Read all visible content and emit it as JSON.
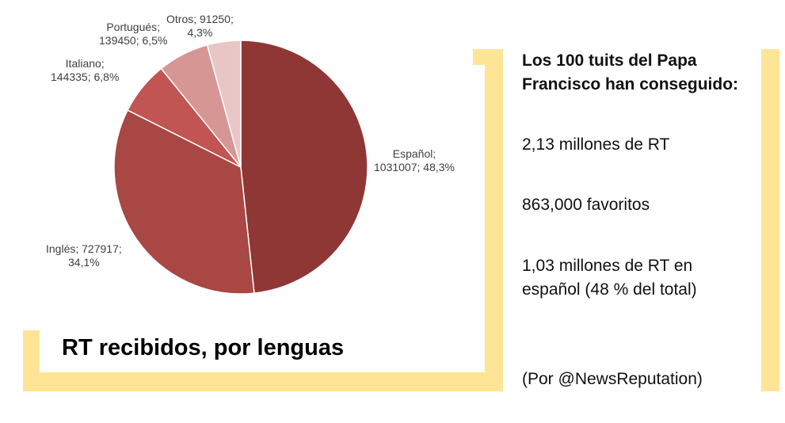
{
  "chart_data": {
    "type": "pie",
    "title": "RT recibidos, por lenguas",
    "slices": [
      {
        "label": "Español",
        "value": 1031007,
        "percent_label": "48,3%",
        "color": "#8e3735"
      },
      {
        "label": "Inglés",
        "value": 727917,
        "percent_label": "34,1%",
        "color": "#a84744"
      },
      {
        "label": "Italiano",
        "value": 144335,
        "percent_label": "6,8%",
        "color": "#c05552"
      },
      {
        "label": "Portugués",
        "value": 139450,
        "percent_label": "6,5%",
        "color": "#d69694"
      },
      {
        "label": "Otros",
        "value": 91250,
        "percent_label": "4,3%",
        "color": "#e7c6c5"
      }
    ],
    "data_labels": [
      "Español;\n1031007; 48,3%",
      "Inglés; 727917;\n34,1%",
      "Italiano;\n144335; 6,8%",
      "Portugués;\n139450; 6,5%",
      "Otros; 91250;\n4,3%"
    ]
  },
  "info_panel": {
    "heading": "Los 100 tuits del Papa\nFrancisco han conseguido:",
    "stat_rt": "2,13 millones de RT",
    "stat_favs": "863,000 favoritos",
    "stat_spanish": "1,03 millones de RT en\nespañol (48 % del total)",
    "credit": "(Por @NewsReputation)"
  },
  "colors": {
    "accent_bracket": "#fde595"
  }
}
